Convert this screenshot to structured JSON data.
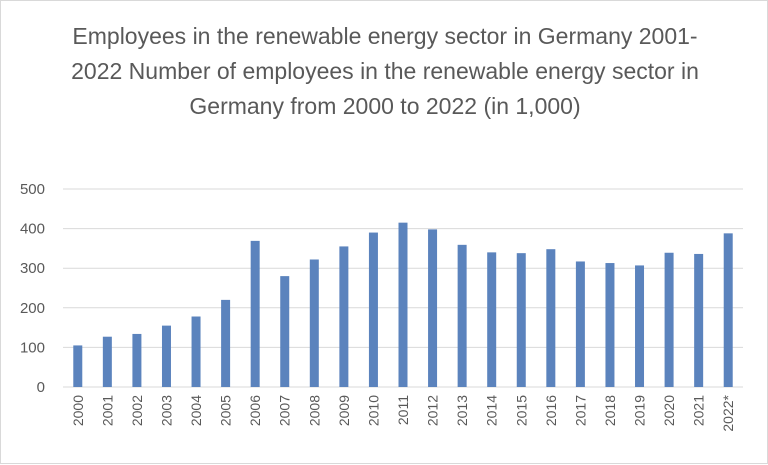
{
  "chart_data": {
    "type": "bar",
    "title": "Employees in the renewable energy sector in Germany 2001-2022 Number of employees in the renewable energy sector in Germany from 2000 to 2022 (in 1,000)",
    "categories": [
      "2000",
      "2001",
      "2002",
      "2003",
      "2004",
      "2005",
      "2006",
      "2007",
      "2008",
      "2009",
      "2010",
      "2011",
      "2012",
      "2013",
      "2014",
      "2015",
      "2016",
      "2017",
      "2018",
      "2019",
      "2020",
      "2021",
      "2022*"
    ],
    "values": [
      105,
      127,
      134,
      155,
      178,
      220,
      369,
      280,
      322,
      355,
      390,
      415,
      398,
      359,
      340,
      338,
      348,
      317,
      313,
      307,
      339,
      336,
      388
    ],
    "ylim": [
      0,
      500
    ],
    "yticks": [
      0,
      100,
      200,
      300,
      400,
      500
    ],
    "grid": true,
    "bar_color": "#5b83bd",
    "grid_color": "#d9d9d9",
    "text_color": "#595959"
  }
}
